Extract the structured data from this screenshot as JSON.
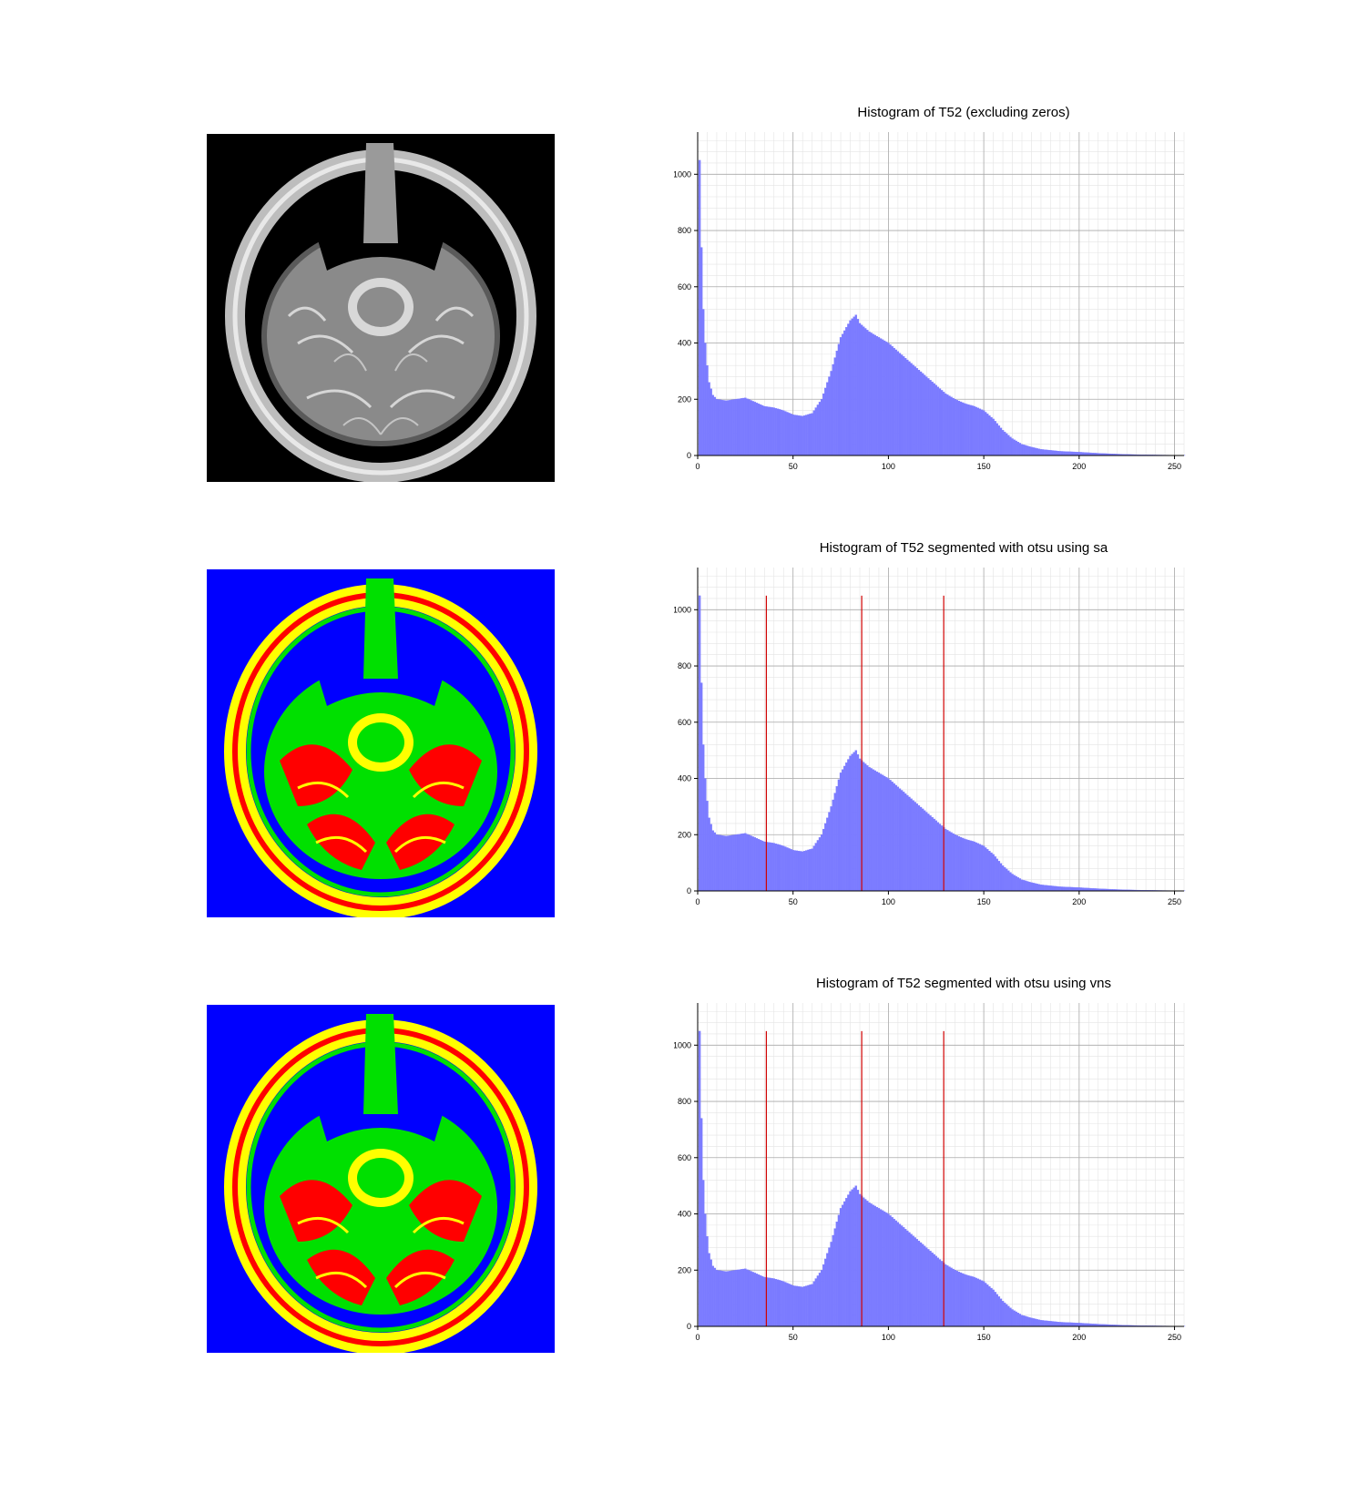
{
  "chart_data": [
    {
      "type": "bar",
      "title": "Histogram of T52 (excluding zeros)",
      "xlabel": "",
      "ylabel": "",
      "xlim": [
        0,
        255
      ],
      "ylim": [
        0,
        1150
      ],
      "xticks": [
        "0",
        "50",
        "100",
        "150",
        "200",
        "250"
      ],
      "yticks": [
        "0",
        "200",
        "400",
        "600",
        "800",
        "1000"
      ],
      "grid": true,
      "color": "#7b7bff",
      "thresholds": [],
      "image_kind": "grayscale",
      "curve": [
        [
          1,
          1050
        ],
        [
          2,
          740
        ],
        [
          3,
          520
        ],
        [
          4,
          400
        ],
        [
          5,
          320
        ],
        [
          6,
          260
        ],
        [
          8,
          215
        ],
        [
          10,
          200
        ],
        [
          15,
          195
        ],
        [
          20,
          200
        ],
        [
          25,
          205
        ],
        [
          30,
          190
        ],
        [
          35,
          175
        ],
        [
          40,
          170
        ],
        [
          45,
          160
        ],
        [
          50,
          145
        ],
        [
          55,
          140
        ],
        [
          60,
          150
        ],
        [
          65,
          200
        ],
        [
          70,
          300
        ],
        [
          75,
          420
        ],
        [
          80,
          480
        ],
        [
          83,
          500
        ],
        [
          85,
          470
        ],
        [
          90,
          440
        ],
        [
          95,
          420
        ],
        [
          100,
          400
        ],
        [
          105,
          370
        ],
        [
          110,
          340
        ],
        [
          115,
          310
        ],
        [
          120,
          280
        ],
        [
          125,
          250
        ],
        [
          130,
          220
        ],
        [
          135,
          200
        ],
        [
          140,
          185
        ],
        [
          145,
          175
        ],
        [
          150,
          160
        ],
        [
          155,
          130
        ],
        [
          160,
          90
        ],
        [
          165,
          60
        ],
        [
          170,
          40
        ],
        [
          175,
          30
        ],
        [
          180,
          22
        ],
        [
          190,
          15
        ],
        [
          200,
          12
        ],
        [
          210,
          8
        ],
        [
          220,
          5
        ],
        [
          230,
          3
        ],
        [
          240,
          2
        ],
        [
          250,
          1
        ],
        [
          255,
          1
        ]
      ]
    },
    {
      "type": "bar",
      "title": "Histogram of T52 segmented with otsu using sa",
      "xlabel": "",
      "ylabel": "",
      "xlim": [
        0,
        255
      ],
      "ylim": [
        0,
        1150
      ],
      "xticks": [
        "0",
        "50",
        "100",
        "150",
        "200",
        "250"
      ],
      "yticks": [
        "0",
        "200",
        "400",
        "600",
        "800",
        "1000"
      ],
      "grid": true,
      "color": "#7b7bff",
      "threshold_color": "#d00000",
      "thresholds": [
        36,
        86,
        129
      ],
      "image_kind": "segmented",
      "curve": [
        [
          1,
          1050
        ],
        [
          2,
          740
        ],
        [
          3,
          520
        ],
        [
          4,
          400
        ],
        [
          5,
          320
        ],
        [
          6,
          260
        ],
        [
          8,
          215
        ],
        [
          10,
          200
        ],
        [
          15,
          195
        ],
        [
          20,
          200
        ],
        [
          25,
          205
        ],
        [
          30,
          190
        ],
        [
          35,
          175
        ],
        [
          40,
          170
        ],
        [
          45,
          160
        ],
        [
          50,
          145
        ],
        [
          55,
          140
        ],
        [
          60,
          150
        ],
        [
          65,
          200
        ],
        [
          70,
          300
        ],
        [
          75,
          420
        ],
        [
          80,
          480
        ],
        [
          83,
          500
        ],
        [
          85,
          470
        ],
        [
          90,
          440
        ],
        [
          95,
          420
        ],
        [
          100,
          400
        ],
        [
          105,
          370
        ],
        [
          110,
          340
        ],
        [
          115,
          310
        ],
        [
          120,
          280
        ],
        [
          125,
          250
        ],
        [
          130,
          220
        ],
        [
          135,
          200
        ],
        [
          140,
          185
        ],
        [
          145,
          175
        ],
        [
          150,
          160
        ],
        [
          155,
          130
        ],
        [
          160,
          90
        ],
        [
          165,
          60
        ],
        [
          170,
          40
        ],
        [
          175,
          30
        ],
        [
          180,
          22
        ],
        [
          190,
          15
        ],
        [
          200,
          12
        ],
        [
          210,
          8
        ],
        [
          220,
          5
        ],
        [
          230,
          3
        ],
        [
          240,
          2
        ],
        [
          250,
          1
        ],
        [
          255,
          1
        ]
      ]
    },
    {
      "type": "bar",
      "title": "Histogram of T52 segmented with otsu using vns",
      "xlabel": "",
      "ylabel": "",
      "xlim": [
        0,
        255
      ],
      "ylim": [
        0,
        1150
      ],
      "xticks": [
        "0",
        "50",
        "100",
        "150",
        "200",
        "250"
      ],
      "yticks": [
        "0",
        "200",
        "400",
        "600",
        "800",
        "1000"
      ],
      "grid": true,
      "color": "#7b7bff",
      "threshold_color": "#d00000",
      "thresholds": [
        36,
        86,
        129
      ],
      "image_kind": "segmented",
      "curve": [
        [
          1,
          1050
        ],
        [
          2,
          740
        ],
        [
          3,
          520
        ],
        [
          4,
          400
        ],
        [
          5,
          320
        ],
        [
          6,
          260
        ],
        [
          8,
          215
        ],
        [
          10,
          200
        ],
        [
          15,
          195
        ],
        [
          20,
          200
        ],
        [
          25,
          205
        ],
        [
          30,
          190
        ],
        [
          35,
          175
        ],
        [
          40,
          170
        ],
        [
          45,
          160
        ],
        [
          50,
          145
        ],
        [
          55,
          140
        ],
        [
          60,
          150
        ],
        [
          65,
          200
        ],
        [
          70,
          300
        ],
        [
          75,
          420
        ],
        [
          80,
          480
        ],
        [
          83,
          500
        ],
        [
          85,
          470
        ],
        [
          90,
          440
        ],
        [
          95,
          420
        ],
        [
          100,
          400
        ],
        [
          105,
          370
        ],
        [
          110,
          340
        ],
        [
          115,
          310
        ],
        [
          120,
          280
        ],
        [
          125,
          250
        ],
        [
          130,
          220
        ],
        [
          135,
          200
        ],
        [
          140,
          185
        ],
        [
          145,
          175
        ],
        [
          150,
          160
        ],
        [
          155,
          130
        ],
        [
          160,
          90
        ],
        [
          165,
          60
        ],
        [
          170,
          40
        ],
        [
          175,
          30
        ],
        [
          180,
          22
        ],
        [
          190,
          15
        ],
        [
          200,
          12
        ],
        [
          210,
          8
        ],
        [
          220,
          5
        ],
        [
          230,
          3
        ],
        [
          240,
          2
        ],
        [
          250,
          1
        ],
        [
          255,
          1
        ]
      ]
    }
  ],
  "segmentation_colors": {
    "background": "#0000ff",
    "class_1": "#00e000",
    "class_2": "#ff0000",
    "class_3": "#ffff00"
  }
}
